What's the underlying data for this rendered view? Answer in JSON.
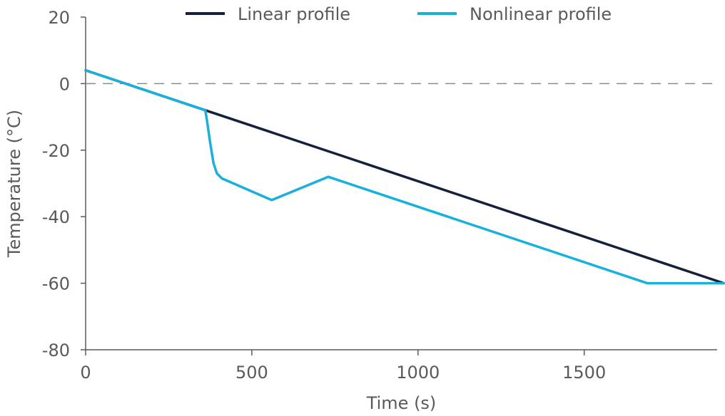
{
  "chart_data": {
    "type": "line",
    "xlabel": "Time (s)",
    "ylabel": "Temperature (°C)",
    "xlim": [
      0,
      1900
    ],
    "ylim": [
      -80,
      20
    ],
    "xticks": [
      0,
      500,
      1000,
      1500
    ],
    "yticks": [
      20,
      0,
      -20,
      -40,
      -60,
      -80
    ],
    "reference_line": {
      "y": 0,
      "style": "dashed",
      "color": "#8c8c8c"
    },
    "grid": false,
    "legend_position": "top",
    "series": [
      {
        "name": "Linear profile",
        "color": "#14213d",
        "x": [
          0,
          1920
        ],
        "y": [
          4,
          -60
        ]
      },
      {
        "name": "Nonlinear profile",
        "color": "#1ab0dc",
        "x": [
          0,
          360,
          365,
          375,
          385,
          395,
          410,
          560,
          730,
          1690,
          1920
        ],
        "y": [
          4,
          -8,
          -11,
          -18,
          -24,
          -27,
          -28.5,
          -35,
          -28,
          -60,
          -60
        ]
      }
    ]
  }
}
